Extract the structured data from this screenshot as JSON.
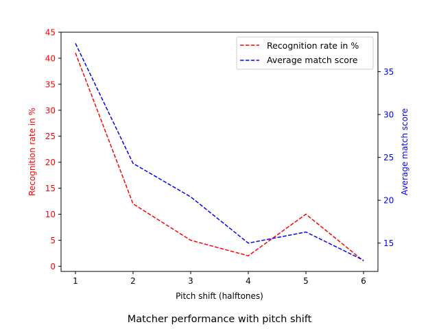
{
  "chart_data": {
    "type": "line",
    "title": "Matcher performance with pitch shift",
    "xlabel": "Pitch shift (halftones)",
    "x": [
      1,
      2,
      3,
      4,
      5,
      6
    ],
    "xlim": [
      0.75,
      6.25
    ],
    "x_ticks": [
      "1",
      "2",
      "3",
      "4",
      "5",
      "6"
    ],
    "left_axis": {
      "label": "Recognition rate in %",
      "color": "#ff0000",
      "ylim": [
        -1,
        45
      ],
      "ticks": [
        "0",
        "5",
        "10",
        "15",
        "20",
        "25",
        "30",
        "35",
        "40",
        "45"
      ]
    },
    "right_axis": {
      "label": "Average match score",
      "color": "#0000ff",
      "ylim": [
        11.7,
        39.6
      ],
      "ticks": [
        "15",
        "20",
        "25",
        "30",
        "35"
      ]
    },
    "series": [
      {
        "name": "Recognition rate in %",
        "axis": "left",
        "color": "#ff0000",
        "line_style": "dashed",
        "values": [
          41,
          12,
          5,
          2,
          10,
          1
        ]
      },
      {
        "name": "Average match score",
        "axis": "right",
        "color": "#0000ff",
        "line_style": "dashed",
        "values": [
          38.3,
          24.3,
          20.4,
          15.0,
          16.3,
          13.0
        ]
      }
    ],
    "legend_position": "top-right",
    "grid": false
  }
}
